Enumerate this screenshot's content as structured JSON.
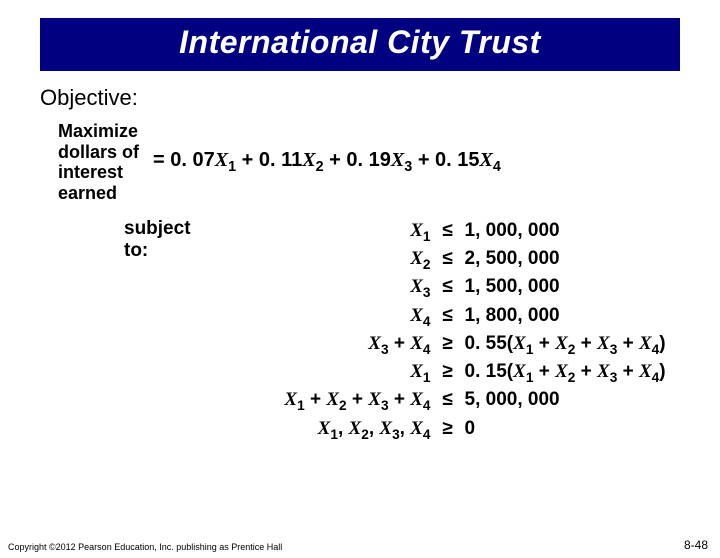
{
  "title": "International City Trust",
  "objective_label": "Objective:",
  "objective_lines": [
    "Maximize",
    "dollars of",
    "interest",
    "earned"
  ],
  "formula": {
    "eq": "= ",
    "terms": [
      {
        "coef": "0. 07",
        "var": "X",
        "sub": "1"
      },
      {
        "coef": "0. 11",
        "var": "X",
        "sub": "2"
      },
      {
        "coef": "0. 19",
        "var": "X",
        "sub": "3"
      },
      {
        "coef": "0. 15",
        "var": "X",
        "sub": "4"
      }
    ],
    "plus": " + "
  },
  "subject_to_label": "subject to:",
  "constraints": [
    {
      "lhs": [
        {
          "v": "X",
          "s": "1"
        }
      ],
      "op": "≤",
      "rhs": "1, 000, 000"
    },
    {
      "lhs": [
        {
          "v": "X",
          "s": "2"
        }
      ],
      "op": "≤",
      "rhs": "2, 500, 000"
    },
    {
      "lhs": [
        {
          "v": "X",
          "s": "3"
        }
      ],
      "op": "≤",
      "rhs": "1, 500, 000"
    },
    {
      "lhs": [
        {
          "v": "X",
          "s": "4"
        }
      ],
      "op": "≤",
      "rhs": "1, 800, 000"
    },
    {
      "lhs": [
        {
          "v": "X",
          "s": "3"
        },
        {
          "t": " + "
        },
        {
          "v": "X",
          "s": "4"
        }
      ],
      "op": "≥",
      "rhs_complex": {
        "pre": "0. 55(",
        "vars": [
          {
            "v": "X",
            "s": "1"
          },
          {
            "v": "X",
            "s": "2"
          },
          {
            "v": "X",
            "s": "3"
          },
          {
            "v": "X",
            "s": "4"
          }
        ],
        "join": " + ",
        "post": ")"
      }
    },
    {
      "lhs": [
        {
          "v": "X",
          "s": "1"
        }
      ],
      "op": "≥",
      "rhs_complex": {
        "pre": "0. 15(",
        "vars": [
          {
            "v": "X",
            "s": "1"
          },
          {
            "v": "X",
            "s": "2"
          },
          {
            "v": "X",
            "s": "3"
          },
          {
            "v": "X",
            "s": "4"
          }
        ],
        "join": " + ",
        "post": ")"
      }
    },
    {
      "lhs": [
        {
          "v": "X",
          "s": "1"
        },
        {
          "t": " + "
        },
        {
          "v": "X",
          "s": "2"
        },
        {
          "t": " + "
        },
        {
          "v": "X",
          "s": "3"
        },
        {
          "t": " + "
        },
        {
          "v": "X",
          "s": "4"
        }
      ],
      "op": "≤",
      "rhs": "5, 000, 000"
    },
    {
      "lhs": [
        {
          "v": "X",
          "s": "1"
        },
        {
          "t": ", "
        },
        {
          "v": "X",
          "s": "2"
        },
        {
          "t": ", "
        },
        {
          "v": "X",
          "s": "3"
        },
        {
          "t": ", "
        },
        {
          "v": "X",
          "s": "4"
        }
      ],
      "op": "≥",
      "rhs": "0"
    }
  ],
  "lhs_indents": [
    0,
    32,
    64,
    100,
    0,
    0,
    0,
    18
  ],
  "footer_left": "Copyright ©2012 Pearson Education, Inc. publishing as Prentice Hall",
  "footer_right": "8-48",
  "colors": {
    "title_bg": "#000080",
    "title_fg": "#ffffff",
    "page_bg": "#ffffff",
    "text": "#000000"
  }
}
